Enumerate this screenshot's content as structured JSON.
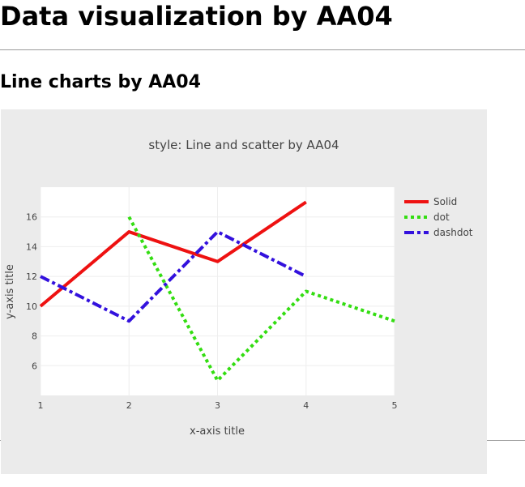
{
  "page": {
    "heading": "Data visualization by AA04",
    "subheading": "Line charts by AA04"
  },
  "chart_data": {
    "type": "line",
    "title": "style: Line and scatter by AA04",
    "xlabel": "x-axis title",
    "ylabel": "y-axis title",
    "xlim": [
      1,
      5
    ],
    "ylim": [
      4,
      18
    ],
    "xticks": [
      1,
      2,
      3,
      4,
      5
    ],
    "yticks": [
      6,
      8,
      10,
      12,
      14,
      16
    ],
    "grid": true,
    "legend": "top-right",
    "paper_bgcolor": "#ebebeb",
    "plot_bgcolor": "#ffffff",
    "series": [
      {
        "name": "Solid",
        "x": [
          1,
          2,
          3,
          4
        ],
        "y": [
          10,
          15,
          13,
          17
        ],
        "color": "#ee1111",
        "dash": "solid"
      },
      {
        "name": "dot",
        "x": [
          2,
          3,
          4,
          5
        ],
        "y": [
          16,
          5,
          11,
          9
        ],
        "color": "#33dd11",
        "dash": "dot"
      },
      {
        "name": "dashdot",
        "x": [
          1,
          2,
          3,
          4
        ],
        "y": [
          12,
          9,
          15,
          12
        ],
        "color": "#3311dd",
        "dash": "dashdot"
      }
    ]
  }
}
